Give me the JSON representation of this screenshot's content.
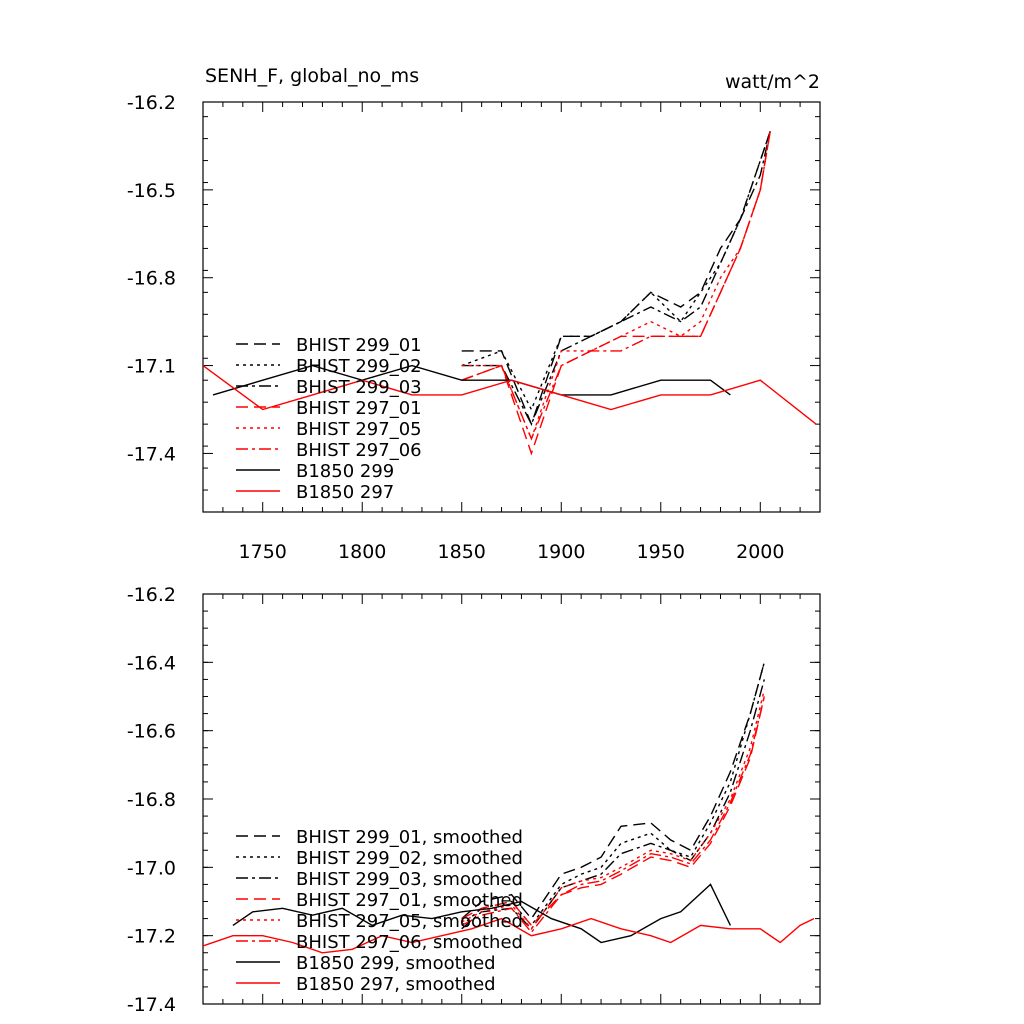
{
  "chart_data": [
    {
      "type": "line",
      "title_left": "SENH_F, global_no_ms",
      "title_right": "watt/m^2",
      "xlim": [
        1720,
        2030
      ],
      "ylim": [
        -17.6,
        -16.2
      ],
      "yticks": [
        "-16.2",
        "-16.5",
        "-16.8",
        "-17.1",
        "-17.4"
      ],
      "xticks": [
        "1750",
        "1800",
        "1850",
        "1900",
        "1950",
        "2000"
      ],
      "legend_position": "lower-left",
      "series": [
        {
          "name": "BHIST 299_01",
          "color": "#000000",
          "dash": "dash",
          "x": [
            1850,
            1870,
            1885,
            1900,
            1915,
            1930,
            1945,
            1960,
            1970,
            1980,
            1990,
            2000,
            2005
          ],
          "y": [
            -17.05,
            -17.05,
            -17.3,
            -17.0,
            -17.0,
            -16.95,
            -16.85,
            -16.9,
            -16.85,
            -16.7,
            -16.6,
            -16.4,
            -16.3
          ]
        },
        {
          "name": "BHIST 299_02",
          "color": "#000000",
          "dash": "dot",
          "x": [
            1850,
            1870,
            1885,
            1900,
            1915,
            1930,
            1945,
            1960,
            1970,
            1980,
            1990,
            2000,
            2005
          ],
          "y": [
            -17.1,
            -17.05,
            -17.25,
            -17.0,
            -17.0,
            -16.95,
            -16.85,
            -16.95,
            -16.85,
            -16.75,
            -16.6,
            -16.4,
            -16.3
          ]
        },
        {
          "name": "BHIST 299_03",
          "color": "#000000",
          "dash": "dashdot",
          "x": [
            1850,
            1870,
            1885,
            1900,
            1915,
            1930,
            1945,
            1960,
            1970,
            1980,
            1990,
            2000,
            2005
          ],
          "y": [
            -17.1,
            -17.1,
            -17.3,
            -17.05,
            -17.0,
            -16.95,
            -16.9,
            -16.95,
            -16.9,
            -16.75,
            -16.6,
            -16.45,
            -16.3
          ]
        },
        {
          "name": "BHIST 297_01",
          "color": "#ff0000",
          "dash": "dash",
          "x": [
            1850,
            1870,
            1885,
            1900,
            1915,
            1930,
            1945,
            1960,
            1970,
            1980,
            1990,
            2000,
            2005
          ],
          "y": [
            -17.15,
            -17.1,
            -17.4,
            -17.1,
            -17.05,
            -17.0,
            -17.0,
            -17.0,
            -17.0,
            -16.85,
            -16.7,
            -16.5,
            -16.3
          ]
        },
        {
          "name": "BHIST 297_05",
          "color": "#ff0000",
          "dash": "dot",
          "x": [
            1850,
            1870,
            1885,
            1900,
            1915,
            1930,
            1945,
            1960,
            1970,
            1980,
            1990,
            2000,
            2005
          ],
          "y": [
            -17.1,
            -17.1,
            -17.35,
            -17.05,
            -17.05,
            -17.0,
            -16.95,
            -17.0,
            -16.95,
            -16.8,
            -16.7,
            -16.5,
            -16.3
          ]
        },
        {
          "name": "BHIST 297_06",
          "color": "#ff0000",
          "dash": "dashdot",
          "x": [
            1850,
            1870,
            1885,
            1900,
            1915,
            1930,
            1945,
            1960,
            1970,
            1980,
            1990,
            2000,
            2005
          ],
          "y": [
            -17.15,
            -17.1,
            -17.35,
            -17.1,
            -17.05,
            -17.05,
            -17.0,
            -17.0,
            -17.0,
            -16.85,
            -16.7,
            -16.5,
            -16.3
          ]
        },
        {
          "name": "B1850 299",
          "color": "#000000",
          "dash": "solid",
          "x": [
            1725,
            1750,
            1775,
            1800,
            1825,
            1850,
            1875,
            1900,
            1925,
            1950,
            1975,
            1985
          ],
          "y": [
            -17.2,
            -17.15,
            -17.1,
            -17.15,
            -17.1,
            -17.15,
            -17.15,
            -17.2,
            -17.2,
            -17.15,
            -17.15,
            -17.2
          ]
        },
        {
          "name": "B1850 297",
          "color": "#ff0000",
          "dash": "solid",
          "x": [
            1720,
            1750,
            1775,
            1800,
            1825,
            1850,
            1875,
            1900,
            1925,
            1950,
            1975,
            2000,
            2028
          ],
          "y": [
            -17.1,
            -17.25,
            -17.2,
            -17.15,
            -17.2,
            -17.2,
            -17.15,
            -17.2,
            -17.25,
            -17.2,
            -17.2,
            -17.15,
            -17.3
          ]
        }
      ]
    },
    {
      "type": "line",
      "xlim": [
        1720,
        2030
      ],
      "ylim": [
        -17.4,
        -16.2
      ],
      "yticks": [
        "-16.2",
        "-16.4",
        "-16.6",
        "-16.8",
        "-17.0",
        "-17.2",
        "-17.4"
      ],
      "legend_position": "lower-left",
      "series": [
        {
          "name": "BHIST 299_01, smoothed",
          "color": "#000000",
          "dash": "dash",
          "x": [
            1850,
            1860,
            1875,
            1885,
            1900,
            1910,
            1920,
            1930,
            1945,
            1955,
            1965,
            1975,
            1985,
            1995,
            2002
          ],
          "y": [
            -17.15,
            -17.1,
            -17.08,
            -17.15,
            -17.02,
            -17.0,
            -16.97,
            -16.88,
            -16.87,
            -16.92,
            -16.95,
            -16.85,
            -16.72,
            -16.55,
            -16.4
          ]
        },
        {
          "name": "BHIST 299_02, smoothed",
          "color": "#000000",
          "dash": "dot",
          "x": [
            1850,
            1860,
            1875,
            1885,
            1900,
            1910,
            1920,
            1930,
            1945,
            1955,
            1965,
            1975,
            1985,
            1995,
            2002
          ],
          "y": [
            -17.17,
            -17.12,
            -17.1,
            -17.17,
            -17.05,
            -17.02,
            -17.0,
            -16.93,
            -16.9,
            -16.95,
            -16.97,
            -16.87,
            -16.75,
            -16.55,
            -16.4
          ]
        },
        {
          "name": "BHIST 299_03, smoothed",
          "color": "#000000",
          "dash": "dashdot",
          "x": [
            1850,
            1860,
            1875,
            1885,
            1900,
            1910,
            1920,
            1930,
            1945,
            1955,
            1965,
            1975,
            1985,
            1995,
            2002
          ],
          "y": [
            -17.18,
            -17.13,
            -17.12,
            -17.18,
            -17.06,
            -17.04,
            -17.02,
            -16.96,
            -16.93,
            -16.95,
            -16.98,
            -16.9,
            -16.78,
            -16.6,
            -16.45
          ]
        },
        {
          "name": "BHIST 297_01, smoothed",
          "color": "#ff0000",
          "dash": "dash",
          "x": [
            1850,
            1860,
            1875,
            1885,
            1900,
            1910,
            1920,
            1930,
            1945,
            1955,
            1965,
            1975,
            1985,
            1995,
            2002
          ],
          "y": [
            -17.15,
            -17.12,
            -17.1,
            -17.17,
            -17.08,
            -17.06,
            -17.05,
            -17.02,
            -16.97,
            -16.98,
            -17.0,
            -16.93,
            -16.82,
            -16.68,
            -16.5
          ]
        },
        {
          "name": "BHIST 297_05, smoothed",
          "color": "#ff0000",
          "dash": "dot",
          "x": [
            1850,
            1860,
            1875,
            1885,
            1900,
            1910,
            1920,
            1930,
            1945,
            1955,
            1965,
            1975,
            1985,
            1995,
            2002
          ],
          "y": [
            -17.16,
            -17.13,
            -17.11,
            -17.18,
            -17.06,
            -17.04,
            -17.03,
            -17.0,
            -16.95,
            -16.96,
            -16.98,
            -16.9,
            -16.8,
            -16.65,
            -16.48
          ]
        },
        {
          "name": "BHIST 297_06, smoothed",
          "color": "#ff0000",
          "dash": "dashdot",
          "x": [
            1850,
            1860,
            1875,
            1885,
            1900,
            1910,
            1920,
            1930,
            1945,
            1955,
            1965,
            1975,
            1985,
            1995,
            2002
          ],
          "y": [
            -17.17,
            -17.14,
            -17.12,
            -17.19,
            -17.08,
            -17.05,
            -17.04,
            -17.01,
            -16.96,
            -16.97,
            -16.99,
            -16.92,
            -16.81,
            -16.67,
            -16.5
          ]
        },
        {
          "name": "B1850 299, smoothed",
          "color": "#000000",
          "dash": "solid",
          "x": [
            1735,
            1745,
            1760,
            1775,
            1790,
            1805,
            1820,
            1835,
            1850,
            1865,
            1880,
            1895,
            1910,
            1920,
            1935,
            1950,
            1960,
            1975,
            1985
          ],
          "y": [
            -17.17,
            -17.13,
            -17.12,
            -17.14,
            -17.12,
            -17.17,
            -17.14,
            -17.15,
            -17.13,
            -17.12,
            -17.1,
            -17.15,
            -17.18,
            -17.22,
            -17.2,
            -17.15,
            -17.13,
            -17.05,
            -17.17
          ]
        },
        {
          "name": "B1850 297, smoothed",
          "color": "#ff0000",
          "dash": "solid",
          "x": [
            1720,
            1735,
            1750,
            1765,
            1780,
            1795,
            1810,
            1825,
            1840,
            1855,
            1870,
            1885,
            1900,
            1915,
            1930,
            1945,
            1955,
            1970,
            1985,
            2000,
            2010,
            2020,
            2027
          ],
          "y": [
            -17.23,
            -17.2,
            -17.2,
            -17.22,
            -17.25,
            -17.24,
            -17.2,
            -17.22,
            -17.2,
            -17.18,
            -17.15,
            -17.2,
            -17.18,
            -17.15,
            -17.18,
            -17.2,
            -17.22,
            -17.17,
            -17.18,
            -17.18,
            -17.22,
            -17.17,
            -17.15
          ]
        }
      ]
    }
  ]
}
